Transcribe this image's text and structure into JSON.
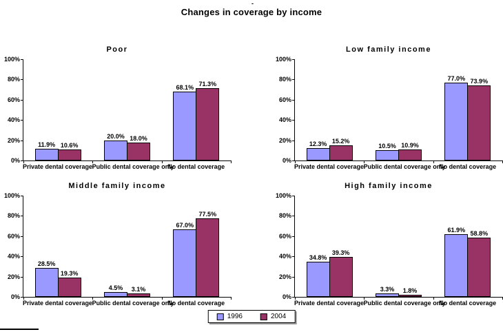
{
  "page": {
    "title": "Changes in coverage by income",
    "stray_mark": "-"
  },
  "axis": {
    "y_ticks": [
      "100%",
      "80%",
      "60%",
      "40%",
      "20%",
      "0%"
    ]
  },
  "legend": {
    "position": "bottom-center",
    "items": [
      {
        "label": "1996",
        "color": "#9999FF"
      },
      {
        "label": "2004",
        "color": "#993366"
      }
    ]
  },
  "chart_data": [
    {
      "type": "bar",
      "title": "Poor",
      "categories": [
        "Private dental coverage",
        "Public dental coverage only",
        "No dental coverage"
      ],
      "series": [
        {
          "name": "1996",
          "values": [
            11.9,
            20.0,
            68.1
          ]
        },
        {
          "name": "2004",
          "values": [
            10.6,
            18.0,
            71.3
          ]
        }
      ],
      "xlabel": "",
      "ylabel": "",
      "ylim": [
        0,
        100
      ],
      "y_tick_step": 20,
      "grid": false
    },
    {
      "type": "bar",
      "title": "Low family income",
      "categories": [
        "Private dental coverage",
        "Public dental coverage only",
        "No dental coverage"
      ],
      "series": [
        {
          "name": "1996",
          "values": [
            12.3,
            10.5,
            77.0
          ]
        },
        {
          "name": "2004",
          "values": [
            15.2,
            10.9,
            73.9
          ]
        }
      ],
      "xlabel": "",
      "ylabel": "",
      "ylim": [
        0,
        100
      ],
      "y_tick_step": 20,
      "grid": false
    },
    {
      "type": "bar",
      "title": "Middle family income",
      "categories": [
        "Private dental coverage",
        "Public dental coverage only",
        "No dental coverage"
      ],
      "series": [
        {
          "name": "1996",
          "values": [
            28.5,
            4.5,
            67.0
          ]
        },
        {
          "name": "2004",
          "values": [
            19.3,
            3.1,
            77.5
          ]
        }
      ],
      "xlabel": "",
      "ylabel": "",
      "ylim": [
        0,
        100
      ],
      "y_tick_step": 20,
      "grid": false
    },
    {
      "type": "bar",
      "title": "High family income",
      "categories": [
        "Private dental coverage",
        "Public dental coverage only",
        "No dental coverage"
      ],
      "series": [
        {
          "name": "1996",
          "values": [
            34.8,
            3.3,
            61.9
          ]
        },
        {
          "name": "2004",
          "values": [
            39.3,
            1.8,
            58.8
          ]
        }
      ],
      "xlabel": "",
      "ylabel": "",
      "ylim": [
        0,
        100
      ],
      "y_tick_step": 20,
      "grid": false
    }
  ]
}
